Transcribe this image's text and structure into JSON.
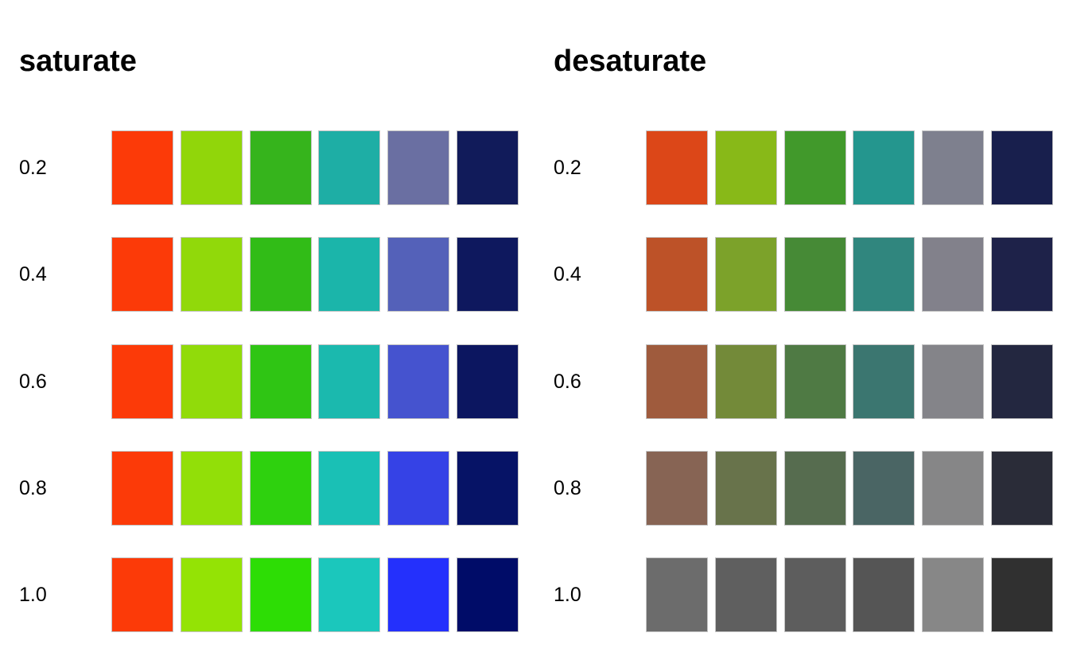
{
  "chart_data": [
    {
      "type": "heatmap",
      "title": "saturate",
      "row_labels": [
        "0.2",
        "0.4",
        "0.6",
        "0.8",
        "1.0"
      ],
      "colors": [
        [
          "#fc3a08",
          "#91d60a",
          "#36b41c",
          "#1eaea5",
          "#6a6fa2",
          "#111b5a"
        ],
        [
          "#fc3a08",
          "#91d90a",
          "#31bc17",
          "#1bb5aa",
          "#5461b9",
          "#0e185e"
        ],
        [
          "#fc3a08",
          "#91db0a",
          "#2fc514",
          "#1bb9ae",
          "#4553cf",
          "#0c1660"
        ],
        [
          "#fc3a08",
          "#92df08",
          "#2ed10e",
          "#1ac0b5",
          "#3542e6",
          "#061366"
        ],
        [
          "#fc3a08",
          "#94e305",
          "#2ddd05",
          "#1bc7bc",
          "#2430fc",
          "#000c68"
        ]
      ]
    },
    {
      "type": "heatmap",
      "title": "desaturate",
      "row_labels": [
        "0.2",
        "0.4",
        "0.6",
        "0.8",
        "1.0"
      ],
      "colors": [
        [
          "#dc4718",
          "#88b918",
          "#41992b",
          "#24968e",
          "#7e808e",
          "#181f4d"
        ],
        [
          "#bd5228",
          "#7ca22a",
          "#468a36",
          "#30867e",
          "#82818b",
          "#1e2249"
        ],
        [
          "#9f5b3d",
          "#738a39",
          "#4f7a44",
          "#3b7670",
          "#848489",
          "#232740"
        ],
        [
          "#876454",
          "#68734b",
          "#566c4f",
          "#4a6564",
          "#868687",
          "#2a2c38"
        ],
        [
          "#6c6c6c",
          "#5f5f5f",
          "#5d5d5d",
          "#555555",
          "#878787",
          "#303030"
        ]
      ]
    }
  ]
}
